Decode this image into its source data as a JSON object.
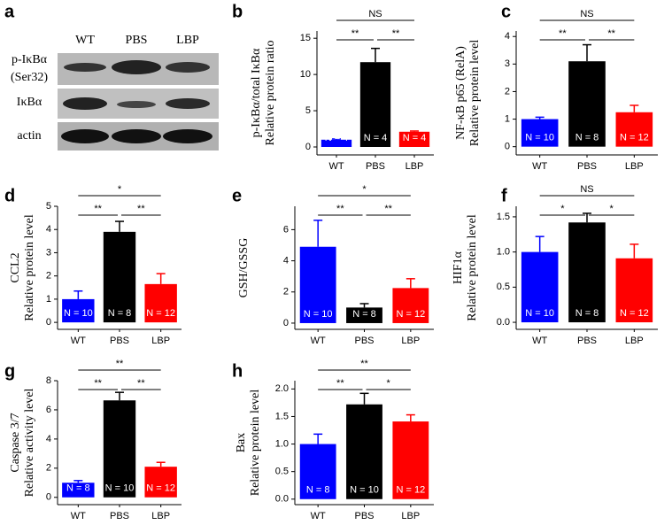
{
  "blot": {
    "panel": "a",
    "lanes": [
      "WT",
      "PBS",
      "LBP"
    ],
    "rows": [
      [
        "p-IκBα",
        "(Ser32)"
      ],
      [
        "IκBα"
      ],
      [
        "actin"
      ]
    ]
  },
  "chart_data": [
    {
      "type": "bar",
      "panel": "b",
      "ylabel": [
        "p-IκBα/total IκBα",
        "Relative protein ratio"
      ],
      "categories": [
        "WT",
        "PBS",
        "LBP"
      ],
      "colors": [
        "#0000ff",
        "#000000",
        "#ff0000"
      ],
      "values": [
        1.0,
        11.7,
        2.1
      ],
      "errors": [
        0.1,
        1.9,
        0.1
      ],
      "bar_labels": [
        "N = 4",
        "N = 4",
        "N = 4"
      ],
      "significance": [
        "**",
        "**",
        "NS"
      ],
      "ylim": [
        -1.1,
        16
      ],
      "yticks": [
        0,
        5,
        10,
        15
      ]
    },
    {
      "type": "bar",
      "panel": "c",
      "ylabel": [
        "NF-κB p65 (RelA)",
        "Relative protein level"
      ],
      "categories": [
        "WT",
        "PBS",
        "LBP"
      ],
      "colors": [
        "#0000ff",
        "#000000",
        "#ff0000"
      ],
      "values": [
        1.0,
        3.1,
        1.25
      ],
      "errors": [
        0.07,
        0.6,
        0.25
      ],
      "bar_labels": [
        "N = 10",
        "N = 8",
        "N = 12"
      ],
      "significance": [
        "**",
        "**",
        "NS"
      ],
      "ylim": [
        -0.3,
        4.2
      ],
      "yticks": [
        0,
        1,
        2,
        3,
        4
      ]
    },
    {
      "type": "bar",
      "panel": "d",
      "ylabel": [
        "CCL2",
        "Relative protein level"
      ],
      "categories": [
        "WT",
        "PBS",
        "LBP"
      ],
      "colors": [
        "#0000ff",
        "#000000",
        "#ff0000"
      ],
      "values": [
        1.0,
        3.9,
        1.65
      ],
      "errors": [
        0.35,
        0.45,
        0.45
      ],
      "bar_labels": [
        "N = 10",
        "N = 8",
        "N = 12"
      ],
      "significance": [
        "**",
        "**",
        "*"
      ],
      "ylim": [
        -0.3,
        5
      ],
      "yticks": [
        0,
        1,
        2,
        3,
        4,
        5
      ]
    },
    {
      "type": "bar",
      "panel": "e",
      "ylabel": [
        "GSH/GSSG"
      ],
      "categories": [
        "WT",
        "PBS",
        "LBP"
      ],
      "colors": [
        "#0000ff",
        "#000000",
        "#ff0000"
      ],
      "values": [
        4.9,
        1.0,
        2.25
      ],
      "errors": [
        1.7,
        0.25,
        0.6
      ],
      "bar_labels": [
        "N = 10",
        "N = 8",
        "N = 12"
      ],
      "significance": [
        "**",
        "**",
        "*"
      ],
      "ylim": [
        -0.4,
        7.5
      ],
      "yticks": [
        0,
        2,
        4,
        6
      ]
    },
    {
      "type": "bar",
      "panel": "f",
      "ylabel": [
        "HIF1α",
        "Relative protein level"
      ],
      "categories": [
        "WT",
        "PBS",
        "LBP"
      ],
      "colors": [
        "#0000ff",
        "#000000",
        "#ff0000"
      ],
      "values": [
        1.0,
        1.42,
        0.91
      ],
      "errors": [
        0.22,
        0.13,
        0.2
      ],
      "bar_labels": [
        "N = 10",
        "N = 8",
        "N = 12"
      ],
      "significance": [
        "*",
        "*",
        "NS"
      ],
      "ylim": [
        -0.1,
        1.65
      ],
      "yticks": [
        {
          "value": 0,
          "label": "0.0"
        },
        {
          "value": 0.5,
          "label": "0.5"
        },
        {
          "value": 1,
          "label": "1.0"
        },
        {
          "value": 1.5,
          "label": "1.5"
        }
      ]
    },
    {
      "type": "bar",
      "panel": "g",
      "ylabel": [
        "Caspase 3/7",
        "Relative activity level"
      ],
      "categories": [
        "WT",
        "PBS",
        "LBP"
      ],
      "colors": [
        "#0000ff",
        "#000000",
        "#ff0000"
      ],
      "values": [
        1.0,
        6.65,
        2.1
      ],
      "errors": [
        0.15,
        0.55,
        0.3
      ],
      "bar_labels": [
        "N = 8",
        "N = 10",
        "N = 12"
      ],
      "significance": [
        "**",
        "**",
        "**"
      ],
      "ylim": [
        -0.5,
        8
      ],
      "yticks": [
        0,
        2,
        4,
        6,
        8
      ]
    },
    {
      "type": "bar",
      "panel": "h",
      "ylabel": [
        "Bax",
        "Relative protein level"
      ],
      "categories": [
        "WT",
        "PBS",
        "LBP"
      ],
      "colors": [
        "#0000ff",
        "#000000",
        "#ff0000"
      ],
      "values": [
        1.0,
        1.72,
        1.41
      ],
      "errors": [
        0.18,
        0.2,
        0.12
      ],
      "bar_labels": [
        "N = 8",
        "N = 10",
        "N = 12"
      ],
      "significance": [
        "**",
        "*",
        "**"
      ],
      "ylim": [
        -0.1,
        2.15
      ],
      "yticks": [
        {
          "value": 0,
          "label": "0.0"
        },
        {
          "value": 0.5,
          "label": "0.5"
        },
        {
          "value": 1,
          "label": "1.0"
        },
        {
          "value": 1.5,
          "label": "1.5"
        },
        {
          "value": 2,
          "label": "2.0"
        }
      ]
    }
  ]
}
